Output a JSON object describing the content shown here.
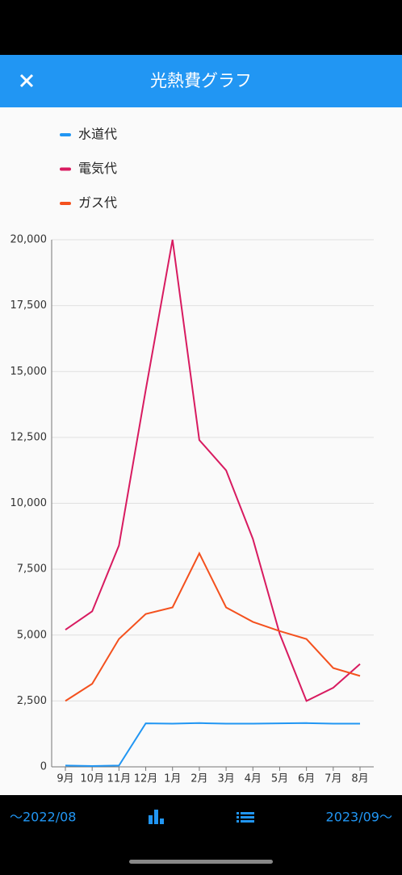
{
  "app_bar": {
    "title": "光熱費グラフ"
  },
  "chart_data": {
    "type": "line",
    "categories": [
      "9月",
      "10月",
      "11月",
      "12月",
      "1月",
      "2月",
      "3月",
      "4月",
      "5月",
      "6月",
      "7月",
      "8月"
    ],
    "series": [
      {
        "name": "水道代",
        "color": "#2196f3",
        "values": [
          50,
          30,
          50,
          1650,
          1640,
          1660,
          1640,
          1640,
          1650,
          1660,
          1640,
          1640
        ]
      },
      {
        "name": "電気代",
        "color": "#d81b60",
        "values": [
          5200,
          5900,
          8400,
          14300,
          20000,
          12400,
          11250,
          8650,
          5050,
          2500,
          3000,
          3900
        ]
      },
      {
        "name": "ガス代",
        "color": "#f4511e",
        "values": [
          2500,
          3150,
          4850,
          5800,
          6050,
          8100,
          6050,
          5500,
          5150,
          4850,
          3750,
          3450
        ]
      }
    ],
    "ylim": [
      0,
      20000
    ],
    "yticks": [
      0,
      {
        "value": 2500,
        "label": "2,500"
      },
      {
        "value": 5000,
        "label": "5,000"
      },
      {
        "value": 7500,
        "label": "7,500"
      },
      {
        "value": 10000,
        "label": "10,000"
      },
      {
        "value": 12500,
        "label": "12,500"
      },
      {
        "value": 15000,
        "label": "15,000"
      },
      {
        "value": 17500,
        "label": "17,500"
      },
      {
        "value": 20000,
        "label": "20,000"
      }
    ],
    "grid": true
  },
  "bottom_bar": {
    "start": "～2022/08",
    "end": "2023/09～"
  }
}
